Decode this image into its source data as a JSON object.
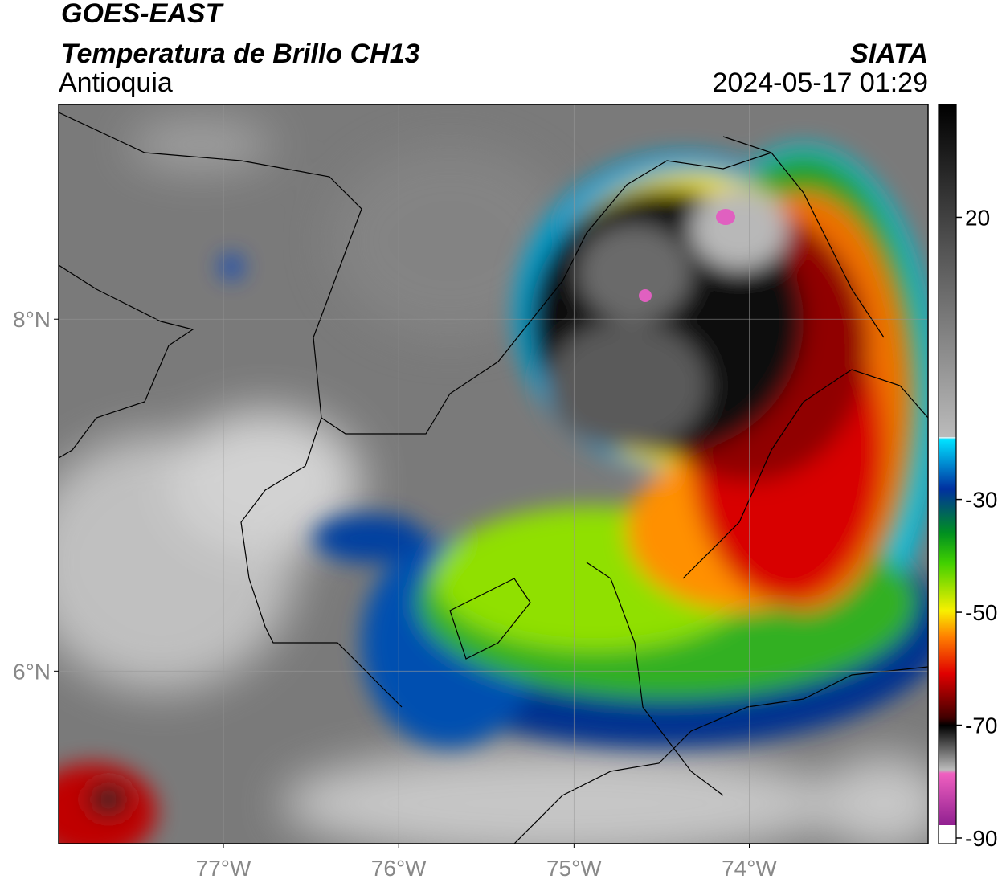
{
  "header": {
    "title": "GOES-EAST",
    "subtitle": "Temperatura de Brillo CH13",
    "region": "Antioquia",
    "agency": "SIATA",
    "datetime": "2024-05-17 01:29"
  },
  "map": {
    "xlim": [
      -77.94,
      -72.98
    ],
    "ylim": [
      5.02,
      9.22
    ],
    "xticks": [
      {
        "value": -77,
        "label": "77°W"
      },
      {
        "value": -76,
        "label": "76°W"
      },
      {
        "value": -75,
        "label": "75°W"
      },
      {
        "value": -74,
        "label": "74°W"
      }
    ],
    "yticks": [
      {
        "value": 8,
        "label": "8°N"
      },
      {
        "value": 6,
        "label": "6°N"
      }
    ]
  },
  "colorbar": {
    "lim": [
      -91,
      40
    ],
    "ticks": [
      20,
      -30,
      -50,
      -70,
      -90
    ]
  }
}
